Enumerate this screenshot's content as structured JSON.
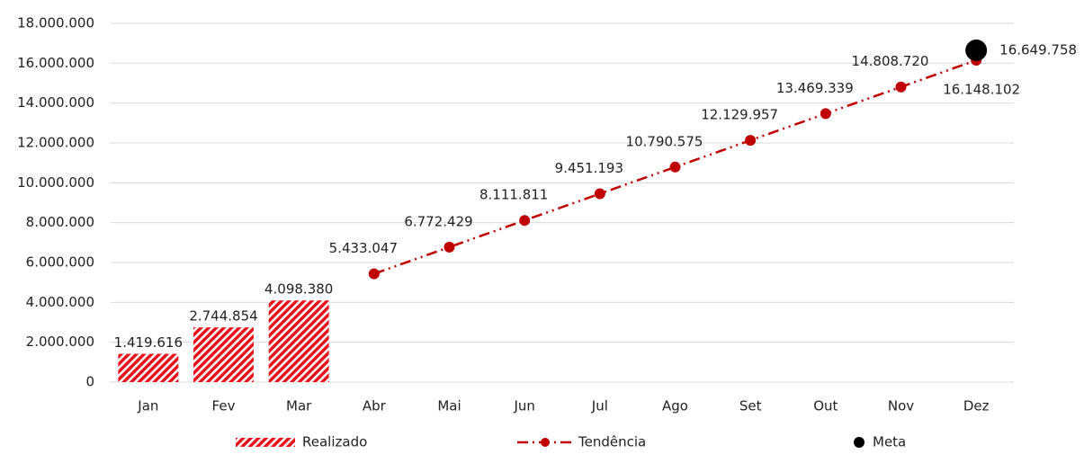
{
  "chart_data": {
    "type": "combo",
    "categories": [
      "Jan",
      "Fev",
      "Mar",
      "Abr",
      "Mai",
      "Jun",
      "Jul",
      "Ago",
      "Set",
      "Out",
      "Nov",
      "Dez"
    ],
    "series": [
      {
        "name": "Realizado",
        "type": "bar",
        "color": "#e8141b",
        "values": [
          1419616,
          2744854,
          4098380,
          null,
          null,
          null,
          null,
          null,
          null,
          null,
          null,
          null
        ],
        "value_labels": [
          "1.419.616",
          "2.744.854",
          "4.098.380",
          null,
          null,
          null,
          null,
          null,
          null,
          null,
          null,
          null
        ]
      },
      {
        "name": "Tendência",
        "type": "line",
        "color": "#c00000",
        "values": [
          null,
          null,
          null,
          5433047,
          6772429,
          8111811,
          9451193,
          10790575,
          12129957,
          13469339,
          14808720,
          16148102
        ],
        "value_labels": [
          null,
          null,
          null,
          "5.433.047",
          "6.772.429",
          "8.111.811",
          "9.451.193",
          "10.790.575",
          "12.129.957",
          "13.469.339",
          "14.808.720",
          "16.148.102"
        ]
      },
      {
        "name": "Meta",
        "type": "scatter",
        "color": "#000000",
        "values": [
          null,
          null,
          null,
          null,
          null,
          null,
          null,
          null,
          null,
          null,
          null,
          16649758
        ],
        "value_labels": [
          null,
          null,
          null,
          null,
          null,
          null,
          null,
          null,
          null,
          null,
          null,
          "16.649.758"
        ]
      }
    ],
    "ylim": [
      0,
      18000000
    ],
    "yticks": [
      0,
      {
        "value": 2000000,
        "label": "2.000.000"
      },
      {
        "value": 4000000,
        "label": "4.000.000"
      },
      {
        "value": 6000000,
        "label": "6.000.000"
      },
      {
        "value": 8000000,
        "label": "8.000.000"
      },
      {
        "value": 10000000,
        "label": "10.000.000"
      },
      {
        "value": 12000000,
        "label": "12.000.000"
      },
      {
        "value": 14000000,
        "label": "14.000.000"
      },
      {
        "value": 16000000,
        "label": "16.000.000"
      },
      {
        "value": 18000000,
        "label": "18.000.000"
      }
    ],
    "grid": true,
    "legend": "bottom"
  }
}
